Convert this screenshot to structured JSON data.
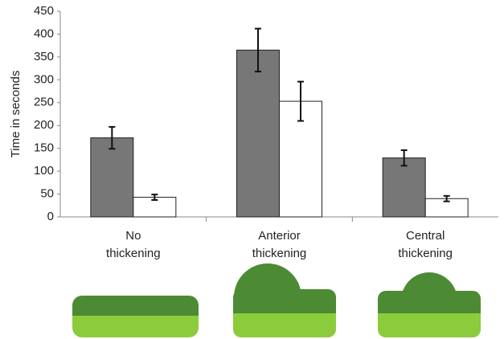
{
  "chart_data": {
    "type": "bar",
    "y_label": "Time in seconds",
    "categories": [
      "No thickening",
      "Anterior thickening",
      "Central thickening"
    ],
    "series": [
      {
        "color": "#777777",
        "values": [
          173,
          365,
          129
        ],
        "errors": [
          24,
          47,
          17
        ]
      },
      {
        "color": "#ffffff",
        "values": [
          43,
          253,
          40
        ],
        "errors": [
          6,
          43,
          6
        ]
      }
    ],
    "ylim": [
      0,
      450
    ],
    "yticks": [
      0,
      50,
      100,
      150,
      200,
      250,
      300,
      350,
      400,
      450
    ],
    "grid": false
  }
}
